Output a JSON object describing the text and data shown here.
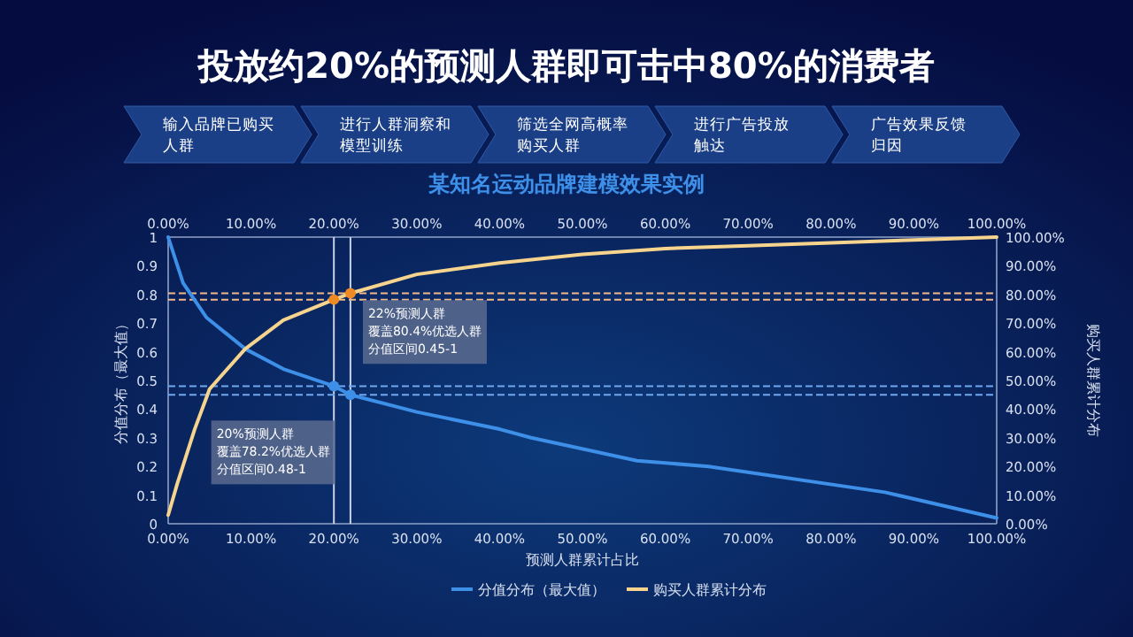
{
  "chart_data": {
    "type": "line",
    "title": "投放约20%的预测人群即可击中80%的消费者",
    "subtitle": "某知名运动品牌建模效果实例",
    "xlabel": "预测人群累计占比",
    "ylabel": "分值分布（最大值）",
    "y2label": "购买人群累计分布",
    "annotations": [
      "输入品牌已购买人群",
      "进行人群洞察和模型训练",
      "筛选全网高概率购买人群",
      "进行广告投放触达",
      "广告效果反馈归因",
      "22%预测人群",
      "覆盖80.4%优选人群",
      "分值区间0.45-1",
      "20%预测人群",
      "覆盖78.2%优选人群",
      "分值区间0.48-1"
    ],
    "series": [
      {
        "name": "分值分布（最大值）",
        "color": "#3d8fe8",
        "marker": "none",
        "x": [
          0,
          1.8,
          4.6,
          9.3,
          13.9,
          20,
          22,
          30,
          40,
          43.8,
          56.6,
          65.2,
          86.5,
          100
        ],
        "values": [
          1,
          0.84,
          0.72,
          0.61,
          0.54,
          0.48,
          0.45,
          0.39,
          0.33,
          0.3,
          0.22,
          0.2,
          0.11,
          0.02
        ]
      },
      {
        "name": "购买人群累计分布",
        "color": "#f6d48e",
        "marker": "none",
        "axis": "y2",
        "x": [
          0,
          1.1,
          3.2,
          5,
          9.3,
          13.9,
          20,
          22,
          30,
          40,
          50,
          60,
          70,
          80,
          90,
          100
        ],
        "values": [
          3,
          14,
          33,
          47,
          61,
          71,
          78.2,
          80.4,
          87,
          91,
          94,
          96,
          97,
          98,
          99,
          100
        ]
      },
      {
        "color": "#3d8fe8",
        "type": "scatter",
        "marker": "circle",
        "x": [
          20,
          22
        ],
        "values": [
          0.48,
          0.45
        ]
      },
      {
        "color": "#f08a24",
        "type": "scatter",
        "marker": "circle",
        "axis": "y2",
        "x": [
          20,
          22
        ],
        "values": [
          78.2,
          80.4
        ]
      }
    ],
    "xlim": [
      0,
      100
    ],
    "xticks": [
      {
        "value": 0,
        "label": "0.00%"
      },
      {
        "value": 10,
        "label": "10.00%"
      },
      {
        "value": 20,
        "label": "20.00%"
      },
      {
        "value": 30,
        "label": "30.00%"
      },
      {
        "value": 40,
        "label": "40.00%"
      },
      {
        "value": 50,
        "label": "50.00%"
      },
      {
        "value": 60,
        "label": "60.00%"
      },
      {
        "value": 70,
        "label": "70.00%"
      },
      {
        "value": 80,
        "label": "80.00%"
      },
      {
        "value": 90,
        "label": "90.00%"
      },
      {
        "value": 100,
        "label": "100.00%"
      }
    ],
    "x2lim": [
      0,
      100
    ],
    "x2ticks": [
      {
        "value": 0,
        "label": "0.00%"
      },
      {
        "value": 10,
        "label": "10.00%"
      },
      {
        "value": 20,
        "label": "20.00%"
      },
      {
        "value": 30,
        "label": "30.00%"
      },
      {
        "value": 40,
        "label": "40.00%"
      },
      {
        "value": 50,
        "label": "50.00%"
      },
      {
        "value": 60,
        "label": "60.00%"
      },
      {
        "value": 70,
        "label": "70.00%"
      },
      {
        "value": 80,
        "label": "80.00%"
      },
      {
        "value": 90,
        "label": "90.00%"
      },
      {
        "value": 100,
        "label": "100.00%"
      }
    ],
    "ylim": [
      0,
      1
    ],
    "yticks": [
      0,
      0.1,
      0.2,
      0.3,
      0.4,
      0.5,
      0.6,
      0.7,
      0.8,
      0.9,
      1
    ],
    "y2lim": [
      0,
      100
    ],
    "y2ticks": [
      {
        "value": 0,
        "label": "0.00%"
      },
      {
        "value": 10,
        "label": "10.00%"
      },
      {
        "value": 20,
        "label": "20.00%"
      },
      {
        "value": 30,
        "label": "30.00%"
      },
      {
        "value": 40,
        "label": "40.00%"
      },
      {
        "value": 50,
        "label": "50.00%"
      },
      {
        "value": 60,
        "label": "60.00%"
      },
      {
        "value": 70,
        "label": "70.00%"
      },
      {
        "value": 80,
        "label": "80.00%"
      },
      {
        "value": 90,
        "label": "90.00%"
      },
      {
        "value": 100,
        "label": "100.00%"
      }
    ],
    "ref_lines": [
      {
        "axis": "x",
        "value": 20,
        "color": "#c8d2e6",
        "line_style": "solid"
      },
      {
        "axis": "x",
        "value": 22,
        "color": "#c8d2e6",
        "line_style": "solid"
      },
      {
        "axis": "y",
        "value": 0.48,
        "color": "#6fa8f0",
        "line_style": "dashed"
      },
      {
        "axis": "y",
        "value": 0.45,
        "color": "#6fa8f0",
        "line_style": "dashed"
      },
      {
        "axis": "y2",
        "value": 78.2,
        "color": "#f0b98a",
        "line_style": "dashed"
      },
      {
        "axis": "y2",
        "value": 80.4,
        "color": "#f0b98a",
        "line_style": "dashed"
      }
    ],
    "grid": false,
    "legend": "bottom"
  }
}
